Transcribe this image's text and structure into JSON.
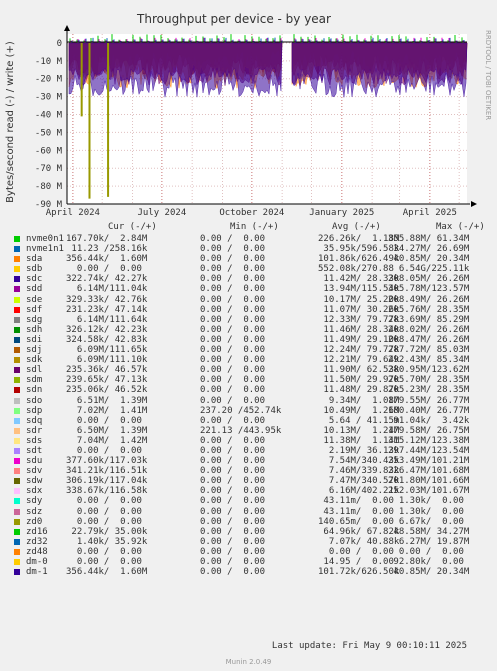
{
  "title": "Throughput per device - by year",
  "watermark": "RRDTOOL / TOBI OETIKER",
  "y_axis_label": "Bytes/second read (-) / write (+)",
  "legend_headers": {
    "cur": "Cur (-/+)",
    "min": "Min (-/+)",
    "avg": "Avg (-/+)",
    "max": "Max (-/+)"
  },
  "devices": [
    {
      "name": "nvme0n1",
      "color": "#00CC00",
      "cur": "167.70k/  2.84M",
      "min": "0.00 /  0.00",
      "avg": "226.26k/  1.18M",
      "max": "355.88M/ 61.34M"
    },
    {
      "name": "nvme1n1",
      "color": "#0066B3",
      "cur": " 11.23 /258.16k",
      "min": "0.00 /  0.00",
      "avg": " 35.95k/596.58k",
      "max": " 34.27M/ 26.69M"
    },
    {
      "name": "sda",
      "color": "#FF8000",
      "cur": "356.44k/  1.60M",
      "min": "0.00 /  0.00",
      "avg": "101.86k/626.49k",
      "max": " 40.85M/ 20.34M"
    },
    {
      "name": "sdb",
      "color": "#FFCC00",
      "cur": "  0.00 /  0.00",
      "min": "0.00 /  0.00",
      "avg": "552.08k/270.88 ",
      "max": "  6.54G/225.11k"
    },
    {
      "name": "sdc",
      "color": "#330099",
      "cur": "322.74k/ 42.27k",
      "min": "0.00 /  0.00",
      "avg": " 11.42M/ 28.33k",
      "max": "208.05M/ 26.26M"
    },
    {
      "name": "sdd",
      "color": "#990099",
      "cur": "  6.14M/111.04k",
      "min": "0.00 /  0.00",
      "avg": " 13.94M/115.54k",
      "max": "305.78M/123.57M"
    },
    {
      "name": "sde",
      "color": "#CCFF00",
      "cur": "329.33k/ 42.76k",
      "min": "0.00 /  0.00",
      "avg": " 10.17M/ 25.20k",
      "max": "208.49M/ 26.26M"
    },
    {
      "name": "sdf",
      "color": "#FF0000",
      "cur": "231.23k/ 47.14k",
      "min": "0.00 /  0.00",
      "avg": " 11.07M/ 30.26k",
      "max": "205.76M/ 28.35M"
    },
    {
      "name": "sdg",
      "color": "#808080",
      "cur": "  6.14M/111.64k",
      "min": "0.00 /  0.00",
      "avg": " 12.33M/ 79.77k",
      "max": "283.69M/ 85.29M"
    },
    {
      "name": "sdh",
      "color": "#008F00",
      "cur": "326.12k/ 42.23k",
      "min": "0.00 /  0.00",
      "avg": " 11.46M/ 28.34k",
      "max": "208.02M/ 26.26M"
    },
    {
      "name": "sdi",
      "color": "#00487D",
      "cur": "324.58k/ 42.83k",
      "min": "0.00 /  0.00",
      "avg": " 11.49M/ 29.10k",
      "max": "208.47M/ 26.26M"
    },
    {
      "name": "sdj",
      "color": "#B35A00",
      "cur": "  6.09M/111.65k",
      "min": "0.00 /  0.00",
      "avg": " 12.24M/ 79.77k",
      "max": "287.72M/ 85.03M"
    },
    {
      "name": "sdk",
      "color": "#B38F00",
      "cur": "  6.09M/111.10k",
      "min": "0.00 /  0.00",
      "avg": " 12.21M/ 79.64k",
      "max": "292.43M/ 85.34M"
    },
    {
      "name": "sdl",
      "color": "#6B006B",
      "cur": "235.36k/ 46.57k",
      "min": "0.00 /  0.00",
      "avg": " 11.90M/ 62.53k",
      "max": "280.95M/123.62M"
    },
    {
      "name": "sdm",
      "color": "#8FB300",
      "cur": "239.65k/ 47.13k",
      "min": "0.00 /  0.00",
      "avg": " 11.50M/ 29.97k",
      "max": "205.70M/ 28.35M"
    },
    {
      "name": "sdn",
      "color": "#B30000",
      "cur": "235.06k/ 46.52k",
      "min": "0.00 /  0.00",
      "avg": " 11.48M/ 29.87k",
      "max": "205.23M/ 28.35M"
    },
    {
      "name": "sdo",
      "color": "#BEBEBE",
      "cur": "  6.51M/  1.39M",
      "min": "0.00 /  0.00",
      "avg": "  9.34M/  1.08M",
      "max": "179.55M/ 26.77M"
    },
    {
      "name": "sdp",
      "color": "#80FF80",
      "cur": "  7.02M/  1.41M",
      "min": "237.20 /452.74k",
      "avg": " 10.49M/  1.26M",
      "max": "180.40M/ 26.77M"
    },
    {
      "name": "sdq",
      "color": "#80C9FF",
      "cur": "  0.00 /  0.00",
      "min": "0.00 /  0.00",
      "avg": "  5.64 / 41.15m",
      "max": " 91.04k/  3.42k"
    },
    {
      "name": "sdr",
      "color": "#FFC080",
      "cur": "  6.50M/  1.39M",
      "min": "221.13 /443.95k",
      "avg": " 10.13M/  1.24M",
      "max": "179.58M/ 26.75M"
    },
    {
      "name": "sds",
      "color": "#FFE680",
      "cur": "  7.04M/  1.42M",
      "min": "0.00 /  0.00",
      "avg": " 11.38M/  1.14M",
      "max": "315.12M/123.38M"
    },
    {
      "name": "sdt",
      "color": "#AA80FF",
      "cur": "  0.00 /  0.00",
      "min": "0.00 /  0.00",
      "avg": "  2.19M/ 36.13k",
      "max": "297.44M/123.54M"
    },
    {
      "name": "sdu",
      "color": "#EE00CC",
      "cur": "377.60k/117.03k",
      "min": "0.00 /  0.00",
      "avg": "  7.54M/340.43k",
      "max": "253.49M/101.21M"
    },
    {
      "name": "sdv",
      "color": "#FF8080",
      "cur": "341.21k/116.51k",
      "min": "0.00 /  0.00",
      "avg": "  7.46M/339.83k",
      "max": "226.47M/101.68M"
    },
    {
      "name": "sdw",
      "color": "#666600",
      "cur": "306.19k/117.04k",
      "min": "0.00 /  0.00",
      "avg": "  7.47M/340.57k",
      "max": "201.80M/101.66M"
    },
    {
      "name": "sdx",
      "color": "#FFBFFF",
      "cur": "338.67k/116.58k",
      "min": "0.00 /  0.00",
      "avg": "  6.16M/402.21k",
      "max": "252.03M/101.67M"
    },
    {
      "name": "sdy",
      "color": "#00FFCC",
      "cur": "  0.00 /  0.00",
      "min": "0.00 /  0.00",
      "avg": " 43.11m/  0.00 ",
      "max": "  1.30k/  0.00 "
    },
    {
      "name": "sdz",
      "color": "#CC6699",
      "cur": "  0.00 /  0.00",
      "min": "0.00 /  0.00",
      "avg": " 43.11m/  0.00 ",
      "max": "  1.30k/  0.00 "
    },
    {
      "name": "zd0",
      "color": "#999900",
      "cur": "  0.00 /  0.00",
      "min": "0.00 /  0.00",
      "avg": "140.65m/  0.00 ",
      "max": "  6.67k/  0.00 "
    },
    {
      "name": "zd16",
      "color": "#00CC00",
      "cur": " 22.79k/ 35.00k",
      "min": "0.00 /  0.00",
      "avg": " 64.96k/ 67.82k",
      "max": " 48.58M/ 34.27M"
    },
    {
      "name": "zd32",
      "color": "#0066B3",
      "cur": "  1.40k/ 35.92k",
      "min": "0.00 /  0.00",
      "avg": "  7.07k/ 40.88k",
      "max": "  6.27M/ 19.87M"
    },
    {
      "name": "zd48",
      "color": "#FF8000",
      "cur": "  0.00 /  0.00",
      "min": "0.00 /  0.00",
      "avg": "  0.00 /  0.00 ",
      "max": "  0.00 /  0.00 "
    },
    {
      "name": "dm-0",
      "color": "#FFCC00",
      "cur": "  0.00 /  0.00",
      "min": "0.00 /  0.00",
      "avg": " 14.95 /  0.00 ",
      "max": " 92.80k/  0.00 "
    },
    {
      "name": "dm-1",
      "color": "#330099",
      "cur": "356.44k/  1.60M",
      "min": "0.00 /  0.00",
      "avg": "101.72k/626.50k",
      "max": " 40.85M/ 20.34M"
    }
  ],
  "last_update": "Last update: Fri May  9 00:10:11 2025",
  "munin_version": "Munin 2.0.49",
  "chart_data": {
    "type": "area",
    "title": "Throughput per device - by year",
    "ylabel": "Bytes/second read (-) / write (+)",
    "y_ticks": [
      "0",
      "-10 M",
      "-20 M",
      "-30 M",
      "-40 M",
      "-50 M",
      "-60 M",
      "-70 M",
      "-80 M",
      "-90 M"
    ],
    "y_tick_values": [
      0,
      -10,
      -20,
      -30,
      -40,
      -50,
      -60,
      -70,
      -80,
      -90
    ],
    "y_unit": "M bytes/s",
    "ylim": [
      -90,
      5
    ],
    "x_ticks": [
      "April 2024",
      "July 2024",
      "October 2024",
      "January 2025",
      "April 2025"
    ],
    "x_tick_dates": [
      "2024-04-01",
      "2024-07-01",
      "2024-10-01",
      "2025-01-01",
      "2025-04-01"
    ],
    "xlim": [
      "2024-03-26",
      "2025-05-09"
    ],
    "grid": true,
    "notes_visible_features": [
      {
        "date": "2024-04-18",
        "value": -87
      },
      {
        "date": "2024-05-07",
        "value": -86
      },
      {
        "date": "2024-04-10",
        "value": -41
      }
    ]
  }
}
